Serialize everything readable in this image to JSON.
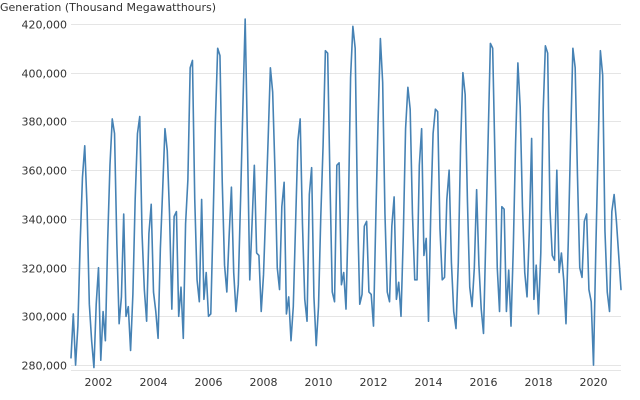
{
  "chart_data": {
    "type": "line",
    "ylabel": "Generation (Thousand Megawatthours)",
    "xlabel": "",
    "grid": true,
    "colors": {
      "line": "#4682b4",
      "grid": "#e5e5e5",
      "text": "#333333"
    },
    "xlim": [
      "2001-01",
      "2021-01"
    ],
    "ylim": [
      278000,
      422000
    ],
    "x_ticks": [
      "2002",
      "2004",
      "2006",
      "2008",
      "2010",
      "2012",
      "2014",
      "2016",
      "2018",
      "2020"
    ],
    "y_ticks": [
      {
        "value": 280000,
        "label": "280,000"
      },
      {
        "value": 300000,
        "label": "300,000"
      },
      {
        "value": 320000,
        "label": "320,000"
      },
      {
        "value": 340000,
        "label": "340,000"
      },
      {
        "value": 360000,
        "label": "360,000"
      },
      {
        "value": 380000,
        "label": "380,000"
      },
      {
        "value": 400000,
        "label": "400,000"
      },
      {
        "value": 420000,
        "label": "420,000"
      }
    ],
    "series": [
      {
        "x": [
          "2001-01",
          "2001-02",
          "2001-03",
          "2001-04",
          "2001-05",
          "2001-06",
          "2001-07",
          "2001-08",
          "2001-09",
          "2001-10",
          "2001-11",
          "2001-12",
          "2002-01",
          "2002-02",
          "2002-03",
          "2002-04",
          "2002-05",
          "2002-06",
          "2002-07",
          "2002-08",
          "2002-09",
          "2002-10",
          "2002-11",
          "2002-12",
          "2003-01",
          "2003-02",
          "2003-03",
          "2003-04",
          "2003-05",
          "2003-06",
          "2003-07",
          "2003-08",
          "2003-09",
          "2003-10",
          "2003-11",
          "2003-12",
          "2004-01",
          "2004-02",
          "2004-03",
          "2004-04",
          "2004-05",
          "2004-06",
          "2004-07",
          "2004-08",
          "2004-09",
          "2004-10",
          "2004-11",
          "2004-12",
          "2005-01",
          "2005-02",
          "2005-03",
          "2005-04",
          "2005-05",
          "2005-06",
          "2005-07",
          "2005-08",
          "2005-09",
          "2005-10",
          "2005-11",
          "2005-12",
          "2006-01",
          "2006-02",
          "2006-03",
          "2006-04",
          "2006-05",
          "2006-06",
          "2006-07",
          "2006-08",
          "2006-09",
          "2006-10",
          "2006-11",
          "2006-12",
          "2007-01",
          "2007-02",
          "2007-03",
          "2007-04",
          "2007-05",
          "2007-06",
          "2007-07",
          "2007-08",
          "2007-09",
          "2007-10",
          "2007-11",
          "2007-12",
          "2008-01",
          "2008-02",
          "2008-03",
          "2008-04",
          "2008-05",
          "2008-06",
          "2008-07",
          "2008-08",
          "2008-09",
          "2008-10",
          "2008-11",
          "2008-12",
          "2009-01",
          "2009-02",
          "2009-03",
          "2009-04",
          "2009-05",
          "2009-06",
          "2009-07",
          "2009-08",
          "2009-09",
          "2009-10",
          "2009-11",
          "2009-12",
          "2010-01",
          "2010-02",
          "2010-03",
          "2010-04",
          "2010-05",
          "2010-06",
          "2010-07",
          "2010-08",
          "2010-09",
          "2010-10",
          "2010-11",
          "2010-12",
          "2011-01",
          "2011-02",
          "2011-03",
          "2011-04",
          "2011-05",
          "2011-06",
          "2011-07",
          "2011-08",
          "2011-09",
          "2011-10",
          "2011-11",
          "2011-12",
          "2012-01",
          "2012-02",
          "2012-03",
          "2012-04",
          "2012-05",
          "2012-06",
          "2012-07",
          "2012-08",
          "2012-09",
          "2012-10",
          "2012-11",
          "2012-12",
          "2013-01",
          "2013-02",
          "2013-03",
          "2013-04",
          "2013-05",
          "2013-06",
          "2013-07",
          "2013-08",
          "2013-09",
          "2013-10",
          "2013-11",
          "2013-12",
          "2014-01",
          "2014-02",
          "2014-03",
          "2014-04",
          "2014-05",
          "2014-06",
          "2014-07",
          "2014-08",
          "2014-09",
          "2014-10",
          "2014-11",
          "2014-12",
          "2015-01",
          "2015-02",
          "2015-03",
          "2015-04",
          "2015-05",
          "2015-06",
          "2015-07",
          "2015-08",
          "2015-09",
          "2015-10",
          "2015-11",
          "2015-12",
          "2016-01",
          "2016-02",
          "2016-03",
          "2016-04",
          "2016-05",
          "2016-06",
          "2016-07",
          "2016-08",
          "2016-09",
          "2016-10",
          "2016-11",
          "2016-12",
          "2017-01",
          "2017-02",
          "2017-03",
          "2017-04",
          "2017-05",
          "2017-06",
          "2017-07",
          "2017-08",
          "2017-09",
          "2017-10",
          "2017-11",
          "2017-12",
          "2018-01",
          "2018-02",
          "2018-03",
          "2018-04",
          "2018-05",
          "2018-06",
          "2018-07",
          "2018-08",
          "2018-09",
          "2018-10",
          "2018-11",
          "2018-12",
          "2019-01",
          "2019-02",
          "2019-03",
          "2019-04",
          "2019-05",
          "2019-06",
          "2019-07",
          "2019-08",
          "2019-09",
          "2019-10",
          "2019-11",
          "2019-12",
          "2020-01",
          "2020-02",
          "2020-03",
          "2020-04",
          "2020-05",
          "2020-06",
          "2020-07",
          "2020-08",
          "2020-09",
          "2020-10",
          "2020-11",
          "2020-12",
          "2021-01"
        ],
        "values": [
          283000,
          301000,
          280000,
          296000,
          330000,
          357000,
          370000,
          345000,
          305000,
          290000,
          279000,
          305000,
          320000,
          282000,
          302000,
          290000,
          331000,
          362000,
          381000,
          375000,
          330000,
          297000,
          308000,
          342000,
          300000,
          304000,
          286000,
          309000,
          348000,
          375000,
          382000,
          334000,
          311000,
          298000,
          334000,
          346000,
          310000,
          302000,
          291000,
          328000,
          352000,
          377000,
          368000,
          342000,
          303000,
          341000,
          343000,
          300000,
          312000,
          291000,
          338000,
          356000,
          402000,
          405000,
          348000,
          315000,
          306000,
          348000,
          307000,
          318000,
          300000,
          301000,
          339000,
          380000,
          410000,
          407000,
          355000,
          321000,
          310000,
          333000,
          353000,
          318000,
          302000,
          313000,
          348000,
          386000,
          422000,
          372000,
          315000,
          338000,
          362000,
          326000,
          325000,
          302000,
          317000,
          344000,
          372000,
          402000,
          392000,
          360000,
          320000,
          311000,
          345000,
          355000,
          301000,
          308000,
          290000,
          304000,
          338000,
          372000,
          381000,
          338000,
          307000,
          298000,
          350000,
          361000,
          308000,
          288000,
          304000,
          341000,
          370000,
          409000,
          408000,
          356000,
          310000,
          306000,
          362000,
          363000,
          313000,
          318000,
          303000,
          342000,
          398000,
          419000,
          410000,
          345000,
          305000,
          309000,
          337000,
          339000,
          310000,
          309000,
          296000,
          340000,
          380000,
          414000,
          396000,
          342000,
          310000,
          306000,
          337000,
          349000,
          307000,
          314000,
          300000,
          333000,
          377000,
          394000,
          385000,
          342000,
          315000,
          315000,
          362000,
          377000,
          325000,
          332000,
          298000,
          343000,
          375000,
          385000,
          384000,
          336000,
          315000,
          316000,
          348000,
          360000,
          322000,
          302000,
          295000,
          322000,
          370000,
          400000,
          391000,
          347000,
          312000,
          304000,
          320000,
          352000,
          321000,
          303000,
          293000,
          332000,
          372000,
          412000,
          410000,
          365000,
          320000,
          302000,
          345000,
          344000,
          302000,
          319000,
          296000,
          328000,
          371000,
          404000,
          386000,
          345000,
          318000,
          308000,
          335000,
          373000,
          307000,
          321000,
          301000,
          326000,
          383000,
          411000,
          408000,
          344000,
          325000,
          323000,
          360000,
          318000,
          326000,
          315000,
          297000,
          331000,
          372000,
          410000,
          402000,
          358000,
          320000,
          316000,
          339000,
          342000,
          311000,
          306000,
          280000,
          327000,
          368000,
          409000,
          399000,
          335000,
          310000,
          302000,
          343000,
          350000,
          339000,
          325000,
          311000
        ]
      }
    ]
  }
}
